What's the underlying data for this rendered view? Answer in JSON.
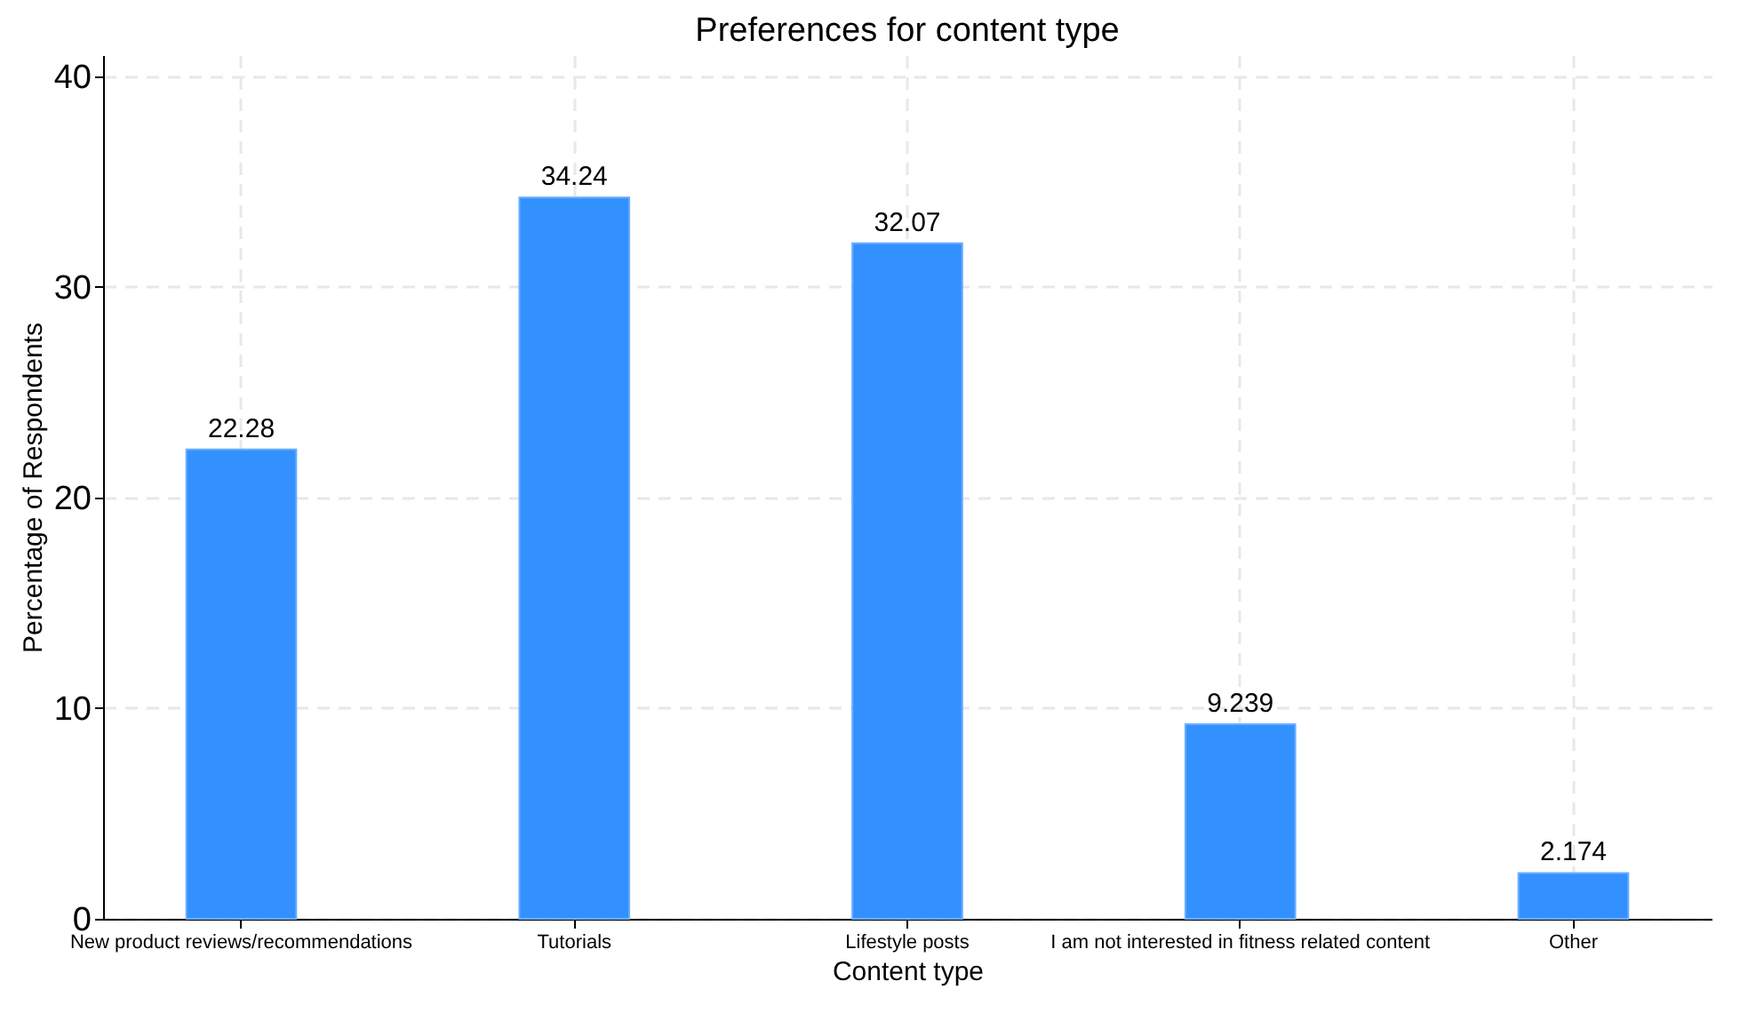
{
  "chart_data": {
    "type": "bar",
    "title": "Preferences for content type",
    "xlabel": "Content type",
    "ylabel": "Percentage of Respondents",
    "categories": [
      "New product reviews/recommendations",
      "Tutorials",
      "Lifestyle posts",
      "I am not interested in fitness related content",
      "Other"
    ],
    "values": [
      22.28,
      34.24,
      32.07,
      9.239,
      2.174
    ],
    "color": "#3391ff",
    "ylim": [
      0,
      41
    ],
    "yticks": [
      0,
      10,
      20,
      30,
      40
    ],
    "grid": true,
    "data_labels": true
  }
}
